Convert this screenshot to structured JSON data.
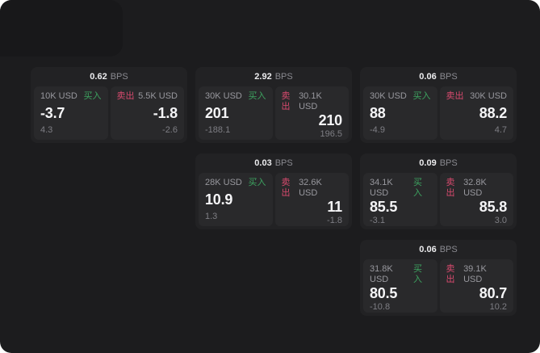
{
  "labels": {
    "bps": "BPS",
    "buy": "买入",
    "sell": "卖出"
  },
  "colors": {
    "app_background": "#1C1C1E",
    "card_background": "#222224",
    "panel_background": "#29292B",
    "buy_green": "#3DA360",
    "sell_red": "#D84A6E",
    "value_text": "#F5F5F7",
    "muted_text": "#8A8A90"
  },
  "cards": [
    {
      "col": 1,
      "row": 1,
      "bps": "0.62",
      "buy": {
        "amount": "10K USD",
        "value": "-3.7",
        "delta": "4.3"
      },
      "sell": {
        "amount": "5.5K USD",
        "value": "-1.8",
        "delta": "-2.6"
      }
    },
    {
      "col": 2,
      "row": 1,
      "bps": "2.92",
      "buy": {
        "amount": "30K USD",
        "value": "201",
        "delta": "-188.1"
      },
      "sell": {
        "amount": "30.1K USD",
        "value": "210",
        "delta": "196.5"
      }
    },
    {
      "col": 3,
      "row": 1,
      "bps": "0.06",
      "buy": {
        "amount": "30K USD",
        "value": "88",
        "delta": "-4.9"
      },
      "sell": {
        "amount": "30K USD",
        "value": "88.2",
        "delta": "4.7"
      }
    },
    {
      "col": 2,
      "row": 2,
      "bps": "0.03",
      "buy": {
        "amount": "28K USD",
        "value": "10.9",
        "delta": "1.3"
      },
      "sell": {
        "amount": "32.6K USD",
        "value": "11",
        "delta": "-1.8"
      }
    },
    {
      "col": 3,
      "row": 2,
      "bps": "0.09",
      "buy": {
        "amount": "34.1K USD",
        "value": "85.5",
        "delta": "-3.1"
      },
      "sell": {
        "amount": "32.8K USD",
        "value": "85.8",
        "delta": "3.0"
      }
    },
    {
      "col": 3,
      "row": 3,
      "bps": "0.06",
      "buy": {
        "amount": "31.8K USD",
        "value": "80.5",
        "delta": "-10.8"
      },
      "sell": {
        "amount": "39.1K USD",
        "value": "80.7",
        "delta": "10.2"
      }
    }
  ]
}
